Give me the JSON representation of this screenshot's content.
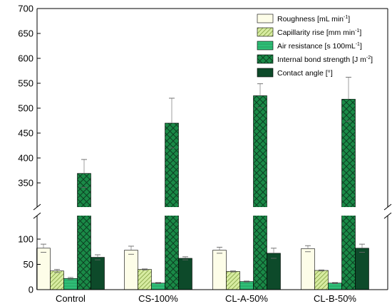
{
  "chart_data": {
    "type": "bar",
    "categories": [
      "Control",
      "CS-100%",
      "CL-A-50%",
      "CL-B-50%"
    ],
    "y_axis_break": [
      150,
      300
    ],
    "ylim": [
      0,
      700
    ],
    "y_ticks_lower": [
      "0",
      "50",
      "100"
    ],
    "y_ticks_upper": [
      "350",
      "400",
      "450",
      "500",
      "550",
      "600",
      "650",
      "700"
    ],
    "grid": false,
    "legend_position": "top-right",
    "series": [
      {
        "name": "Roughness [mL min-1]",
        "legend_main": "Roughness [mL min",
        "legend_sup": "-1",
        "legend_tail": "]",
        "color": "#fdfde8",
        "pattern": "none",
        "values": [
          82,
          78,
          78,
          81
        ],
        "errors": [
          8,
          8,
          6,
          6
        ]
      },
      {
        "name": "Capillarity rise [mm min-1]",
        "legend_main": "Capillarity rise [mm min",
        "legend_sup": "-1",
        "legend_tail": "]",
        "color": "#d7eca1",
        "pattern": "diagonal",
        "values": [
          37,
          40,
          36,
          38
        ],
        "errors": [
          3,
          1,
          1,
          1
        ]
      },
      {
        "name": "Air resistance [s 100mL-1]",
        "legend_main": "Air resistance [s 100mL",
        "legend_sup": "-1",
        "legend_tail": "]",
        "color": "#2fbf77",
        "pattern": "horizontal",
        "values": [
          22,
          13,
          16,
          13
        ],
        "errors": [
          2,
          1,
          1,
          1
        ]
      },
      {
        "name": "Internal bond strength [J m-2]",
        "legend_main": "Internal bond strength [J m",
        "legend_sup": "-2",
        "legend_tail": "]",
        "color": "#1a8a47",
        "pattern": "crosshatch",
        "values": [
          369,
          470,
          525,
          518
        ],
        "errors": [
          28,
          50,
          24,
          44
        ]
      },
      {
        "name": "Contact angle [°]",
        "legend_main": "Contact angle [°]",
        "legend_sup": "",
        "legend_tail": "",
        "color": "#0d4a2a",
        "pattern": "none",
        "values": [
          64,
          62,
          72,
          82
        ],
        "errors": [
          5,
          3,
          10,
          8
        ]
      }
    ]
  }
}
